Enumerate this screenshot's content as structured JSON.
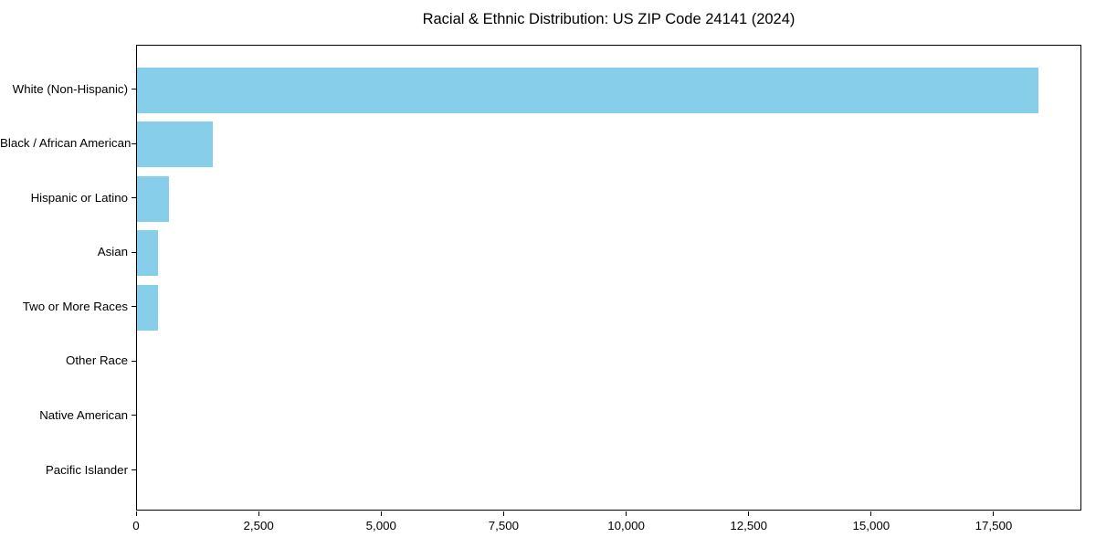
{
  "chart_data": {
    "type": "bar",
    "orientation": "horizontal",
    "title": "Racial & Ethnic Distribution: US ZIP Code 24141 (2024)",
    "categories": [
      "White (Non-Hispanic)",
      "Black / African American",
      "Hispanic or Latino",
      "Asian",
      "Two or More Races",
      "Other Race",
      "Native American",
      "Pacific Islander"
    ],
    "values": [
      18400,
      1550,
      660,
      420,
      420,
      0,
      0,
      0
    ],
    "xlabel": "",
    "ylabel": "",
    "xlim": [
      0,
      19290
    ],
    "xticks": [
      0,
      2500,
      5000,
      7500,
      10000,
      12500,
      15000,
      17500
    ],
    "xtick_labels": [
      "0",
      "2,500",
      "5,000",
      "7,500",
      "10,000",
      "12,500",
      "15,000",
      "17,500"
    ],
    "bar_color": "#87CEEB",
    "spine_color": "#000000",
    "text_color": "#000000",
    "background_color": "#ffffff",
    "grid": false,
    "legend": null
  }
}
